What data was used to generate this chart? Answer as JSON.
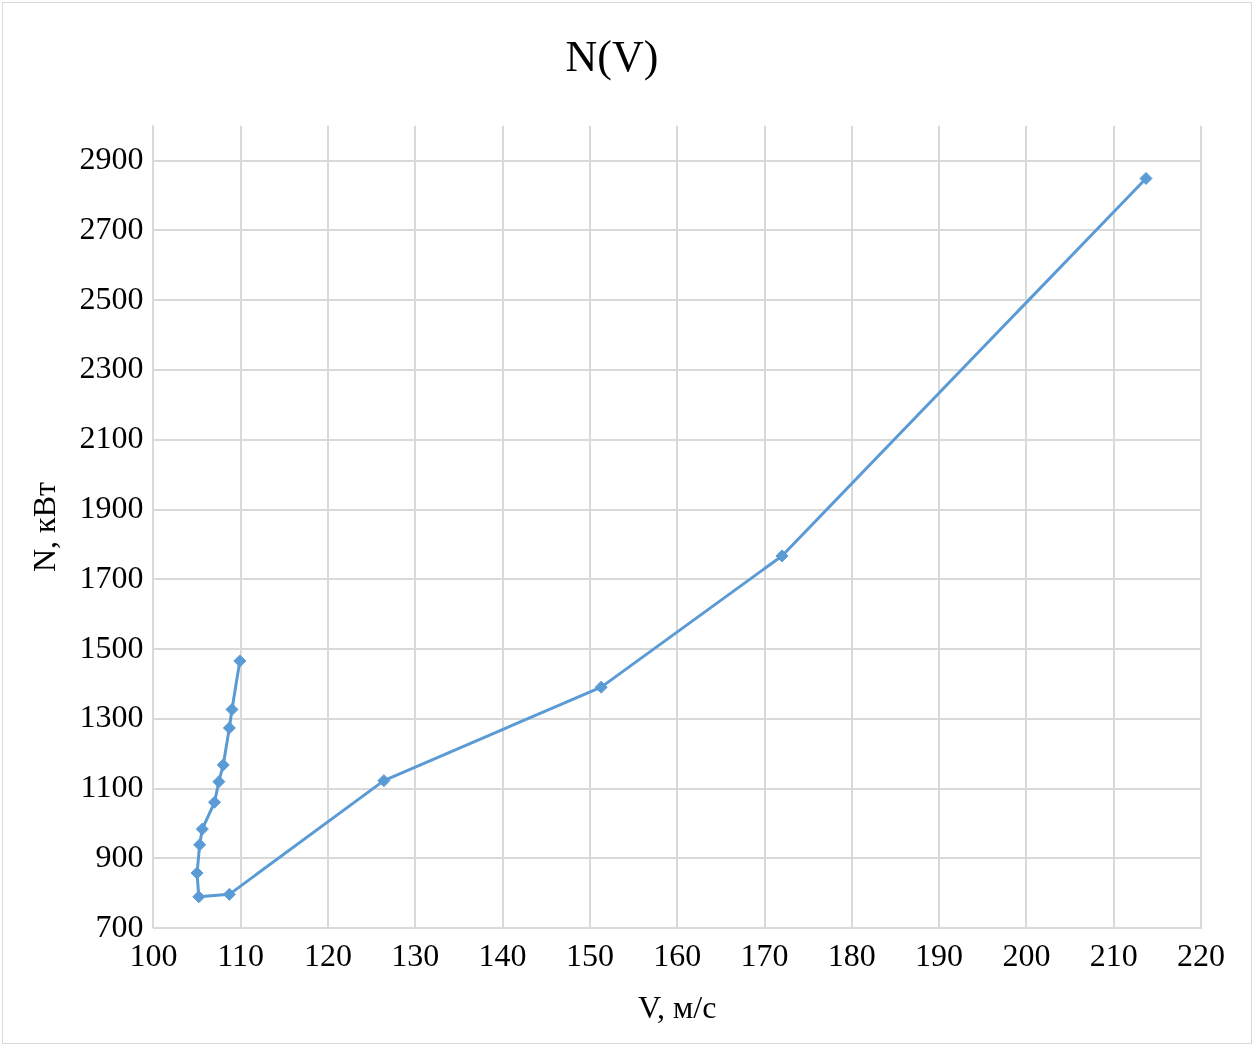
{
  "chart_data": {
    "type": "scatter",
    "title": "N(V)",
    "xlabel": "V, м/с",
    "ylabel": "N, кВт",
    "series": [
      {
        "type": "line",
        "color": "#5b9bd5",
        "x": [
          109.9,
          109.0,
          108.7,
          108.0,
          107.5,
          107.0,
          105.6,
          105.3,
          105.0,
          105.2,
          108.7,
          126.4,
          151.3,
          172.0,
          213.7
        ],
        "values": [
          1466,
          1327,
          1274,
          1168,
          1120,
          1061,
          984,
          939,
          858,
          790,
          797,
          1123,
          1391,
          1767,
          2849
        ]
      }
    ],
    "xlim": [
      100,
      220
    ],
    "xticks": [
      100,
      110,
      120,
      130,
      140,
      150,
      160,
      170,
      180,
      190,
      200,
      210,
      220
    ],
    "ylim": [
      700,
      3000
    ],
    "yticks": [
      700,
      900,
      1100,
      1300,
      1500,
      1700,
      1900,
      2100,
      2300,
      2500,
      2700,
      2900
    ],
    "grid": true,
    "legend": false,
    "marker": "diamond",
    "line_style": "solid"
  }
}
